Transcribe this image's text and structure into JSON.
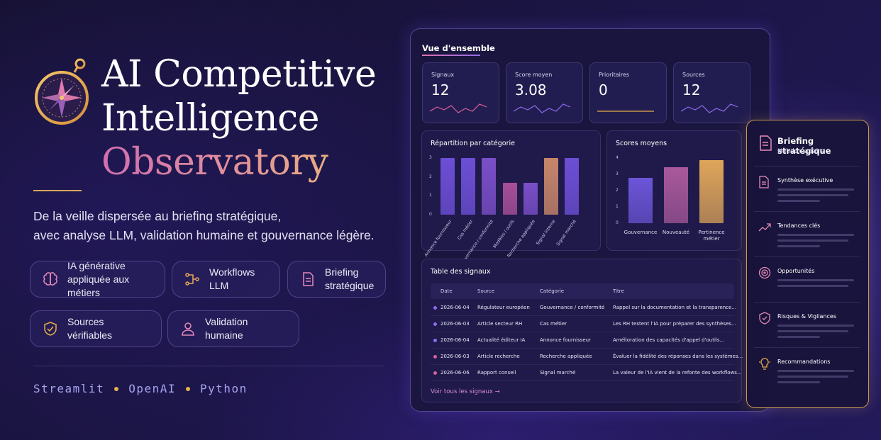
{
  "hero": {
    "title_line1": "AI Competitive",
    "title_line2": "Intelligence",
    "title_line3": "Observatory",
    "tagline_line1": "De la veille dispersée au briefing stratégique,",
    "tagline_line2": "avec analyse LLM, validation humaine et gouvernance légère.",
    "icon": "compass-icon",
    "features": [
      {
        "line1": "IA générative",
        "line2": "appliquée aux métiers",
        "icon": "brain-icon"
      },
      {
        "line1": "Workflows LLM",
        "line2": "",
        "icon": "workflow-icon"
      },
      {
        "line1": "Briefing",
        "line2": "stratégique",
        "icon": "document-icon"
      },
      {
        "line1": "Sources vérifiables",
        "line2": "",
        "icon": "shield-check-icon"
      },
      {
        "line1": "Validation humaine",
        "line2": "",
        "icon": "user-icon"
      }
    ],
    "tech_stack": [
      "Streamlit",
      "OpenAI",
      "Python"
    ]
  },
  "dashboard": {
    "title": "Vue d'ensemble",
    "kpis": [
      {
        "label": "Signaux",
        "value": "12",
        "trend_color": "#d9609a"
      },
      {
        "label": "Score moyen",
        "value": "3.08",
        "trend_color": "#8f6cf0"
      },
      {
        "label": "Prioritaires",
        "value": "0",
        "trend_color": "#e8b04a"
      },
      {
        "label": "Sources",
        "value": "12",
        "trend_color": "#8f6cf0"
      }
    ]
  },
  "chart_data": [
    {
      "type": "bar",
      "title": "Répartition par catégorie",
      "categories": [
        "Annonce fournisseur",
        "Cas métier",
        "Gouvernance / conformité",
        "Modèles / outils",
        "Recherche appliquée",
        "Signal interne",
        "Signal marché"
      ],
      "values": [
        3,
        3,
        3,
        1.7,
        1.7,
        3,
        3
      ],
      "colors": [
        "#6c4fd6",
        "#6c4fd6",
        "#7a4fc8",
        "#a84f98",
        "#7a4fc8",
        "#c7866a",
        "#6c4fd6"
      ],
      "yticks": [
        "0",
        "1",
        "2",
        "3"
      ],
      "ylim": [
        0,
        3
      ]
    },
    {
      "type": "bar",
      "title": "Scores moyens",
      "categories": [
        "Gouvernance",
        "Nouveauté",
        "Pertinence métier"
      ],
      "values": [
        2.8,
        3.45,
        3.85
      ],
      "colors": [
        "#6c55d8",
        "#a9599c",
        "#dfa65a"
      ],
      "yticks": [
        "0",
        "1",
        "2",
        "3",
        "4"
      ],
      "ylim": [
        0,
        4
      ]
    }
  ],
  "table": {
    "title": "Table des signaux",
    "headers": [
      "Date",
      "Source",
      "Catégorie",
      "Titre"
    ],
    "rows": [
      {
        "date": "2026-06-04",
        "source": "Régulateur européen",
        "category": "Gouvernance / conformité",
        "title": "Rappel sur la documentation et la transparence...",
        "dot": "#8f6cf0"
      },
      {
        "date": "2026-06-03",
        "source": "Article secteur RH",
        "category": "Cas métier",
        "title": "Les RH testent l'IA pour préparer des synthèses...",
        "dot": "#8f6cf0"
      },
      {
        "date": "2026-06-04",
        "source": "Actualité éditeur IA",
        "category": "Annonce fournisseur",
        "title": "Amélioration des capacités d'appel d'outils...",
        "dot": "#8f6cf0"
      },
      {
        "date": "2026-06-03",
        "source": "Article recherche",
        "category": "Recherche appliquée",
        "title": "Évaluer la fidélité des réponses dans les systèmes...",
        "dot": "#d9609a"
      },
      {
        "date": "2026-06-06",
        "source": "Rapport conseil",
        "category": "Signal marché",
        "title": "La valeur de l'IA vient de la refonte des workflows...",
        "dot": "#d9609a"
      }
    ],
    "see_all": "Voir tous les signaux →"
  },
  "briefing": {
    "title": "Briefing stratégique",
    "subtitle": "Hebdomadaire",
    "sections": [
      {
        "name": "Synthèse exécutive",
        "icon": "document-icon"
      },
      {
        "name": "Tendances clés",
        "icon": "trend-up-icon"
      },
      {
        "name": "Opportunités",
        "icon": "target-icon"
      },
      {
        "name": "Risques & Vigilances",
        "icon": "shield-check-icon"
      },
      {
        "name": "Recommandations",
        "icon": "lightbulb-icon"
      }
    ]
  }
}
